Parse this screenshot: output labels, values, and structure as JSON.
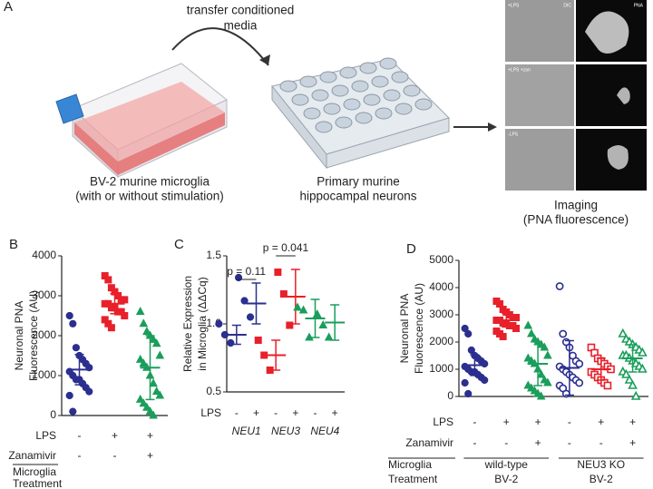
{
  "diagram": {
    "label": "A",
    "transfer": [
      "transfer conditioned",
      "media"
    ],
    "steps": [
      [
        "BV-2 murine microglia",
        "(with or without stimulation)"
      ],
      [
        "Primary murine",
        "hippocampal neurons"
      ],
      [
        "Imaging",
        "(PNA fluorescence)"
      ]
    ],
    "image_labels": [
      "+LPS",
      "DIC",
      "PNA",
      "+LPS +zan",
      "-LPS"
    ]
  },
  "chart_data": [
    {
      "type": "dotplot",
      "panel": "B",
      "ylabel": [
        "Neuronal PNA",
        "Fluorescence (AU)"
      ],
      "ylim": [
        0,
        4000
      ],
      "yticks": [
        0,
        1000,
        2000,
        3000,
        4000
      ],
      "groups": [
        {
          "color": "#2b2f8f",
          "marker": "circle",
          "filled": true,
          "points": [
            2500,
            2300,
            1700,
            1500,
            1400,
            1300,
            1200,
            1100,
            1000,
            900,
            900,
            800,
            700,
            600,
            500,
            100
          ],
          "mean": 1150,
          "sd": 380
        },
        {
          "color": "#e8202a",
          "marker": "square",
          "filled": true,
          "points": [
            3500,
            3400,
            3200,
            3100,
            3000,
            2900,
            2900,
            2800,
            2800,
            2700,
            2700,
            2600,
            2600,
            2500,
            2400,
            2300,
            2200
          ],
          "mean": 2800,
          "sd": 250
        },
        {
          "color": "#1a9e5b",
          "marker": "triangle",
          "filled": true,
          "points": [
            2600,
            2300,
            2100,
            2000,
            1900,
            1800,
            1500,
            1400,
            1300,
            1200,
            1000,
            800,
            600,
            500,
            400,
            300,
            200,
            100,
            0
          ],
          "mean": 1200,
          "sd": 800
        }
      ],
      "conditions": [
        {
          "label": "LPS",
          "values": [
            "-",
            "+",
            "+"
          ]
        },
        {
          "label": "Zanamivir",
          "values": [
            "-",
            "-",
            "+"
          ]
        }
      ],
      "treatment": [
        "Microglia",
        "Treatment"
      ]
    },
    {
      "type": "dotplot",
      "panel": "C",
      "ylabel": [
        "Relative Expression",
        "in Microglia (ΔΔCq)"
      ],
      "ylim": [
        0.5,
        1.5
      ],
      "yticks": [
        {
          "value": 0.5,
          "label": "0.5"
        },
        {
          "value": 1,
          "label": "1.0"
        },
        {
          "value": 1.5,
          "label": "1.5"
        }
      ],
      "groups": [
        {
          "color": "#2b2f8f",
          "marker": "circle",
          "filled": true,
          "points": [
            1.0,
            0.92,
            0.86
          ],
          "mean": 0.92,
          "sd": 0.07
        },
        {
          "color": "#2b2f8f",
          "marker": "circle",
          "filled": true,
          "points": [
            1.34,
            1.17,
            1.05
          ],
          "mean": 1.15,
          "sd": 0.15
        },
        {
          "color": "#e8202a",
          "marker": "square",
          "filled": true,
          "points": [
            0.88,
            0.77,
            0.66
          ],
          "mean": 0.77,
          "sd": 0.11
        },
        {
          "color": "#e8202a",
          "marker": "square",
          "filled": true,
          "points": [
            1.38,
            1.22,
            0.99
          ],
          "mean": 1.2,
          "sd": 0.2
        },
        {
          "color": "#1a9e5b",
          "marker": "triangle",
          "filled": true,
          "points": [
            1.12,
            1.1,
            0.9
          ],
          "mean": 1.04,
          "sd": 0.14
        },
        {
          "color": "#1a9e5b",
          "marker": "triangle",
          "filled": true,
          "points": [
            1.07,
            0.99,
            0.9
          ],
          "mean": 1.01,
          "sd": 0.13
        }
      ],
      "conditions": [
        {
          "label": "LPS",
          "values": [
            "-",
            "+",
            "-",
            "+",
            "-",
            "+"
          ]
        }
      ],
      "genes": [
        "NEU1",
        "NEU3",
        "NEU4"
      ],
      "annotations": [
        "p = 0.11",
        "p = 0.041"
      ]
    },
    {
      "type": "dotplot",
      "panel": "D",
      "ylabel": [
        "Neuronal PNA",
        "Fluorescence (AU)"
      ],
      "ylim": [
        0,
        5000
      ],
      "yticks": [
        0,
        1000,
        2000,
        3000,
        4000,
        5000
      ],
      "groups": [
        {
          "color": "#2b2f8f",
          "marker": "circle",
          "filled": true,
          "points": [
            2500,
            2300,
            1700,
            1500,
            1400,
            1300,
            1200,
            1100,
            1000,
            900,
            900,
            800,
            700,
            600,
            500,
            100
          ],
          "mean": 1150,
          "sd": 380
        },
        {
          "color": "#e8202a",
          "marker": "square",
          "filled": true,
          "points": [
            3500,
            3400,
            3200,
            3100,
            3000,
            2900,
            2900,
            2800,
            2800,
            2700,
            2700,
            2600,
            2600,
            2500,
            2400,
            2300,
            2200
          ],
          "mean": 2800,
          "sd": 250
        },
        {
          "color": "#1a9e5b",
          "marker": "triangle",
          "filled": true,
          "points": [
            2600,
            2300,
            2100,
            2000,
            1900,
            1800,
            1500,
            1400,
            1300,
            1200,
            1000,
            800,
            600,
            500,
            400,
            300,
            200,
            100,
            0
          ],
          "mean": 1200,
          "sd": 800
        },
        {
          "color": "#2b2f8f",
          "marker": "circle",
          "filled": false,
          "points": [
            4050,
            2300,
            2000,
            1800,
            1500,
            1300,
            1200,
            1100,
            1000,
            900,
            800,
            700,
            600,
            500,
            400,
            300,
            100
          ],
          "mean": 1050,
          "sd": 1000
        },
        {
          "color": "#e8202a",
          "marker": "square",
          "filled": false,
          "points": [
            1800,
            1600,
            1400,
            1300,
            1200,
            1100,
            1000,
            900,
            800,
            700,
            600,
            500,
            400
          ],
          "mean": 1000,
          "sd": 400
        },
        {
          "color": "#1a9e5b",
          "marker": "triangle",
          "filled": false,
          "points": [
            2300,
            2100,
            2000,
            1900,
            1800,
            1700,
            1600,
            1500,
            1500,
            1400,
            1300,
            1200,
            1100,
            1000,
            900,
            800,
            600,
            400,
            0
          ],
          "mean": 1400,
          "sd": 500
        }
      ],
      "conditions": [
        {
          "label": "LPS",
          "values": [
            "-",
            "+",
            "+",
            "-",
            "+",
            "+"
          ]
        },
        {
          "label": "Zanamivir",
          "values": [
            "-",
            "-",
            "+",
            "-",
            "-",
            "+"
          ]
        }
      ],
      "treatment": [
        "Microglia",
        "Treatment"
      ],
      "cell_lines": [
        [
          "wild-type",
          "BV-2"
        ],
        [
          "NEU3 KO",
          "BV-2"
        ]
      ]
    }
  ]
}
